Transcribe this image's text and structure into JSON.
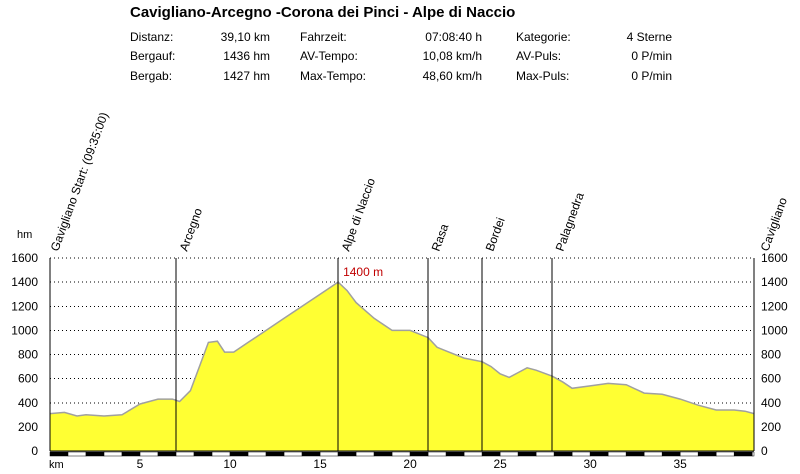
{
  "header": {
    "title": "Cavigliano-Arcegno -Corona dei Pinci - Alpe di Naccio",
    "stats": [
      {
        "label": "Distanz:",
        "value": "39,10 km"
      },
      {
        "label": "Bergauf:",
        "value": "1436 hm"
      },
      {
        "label": "Bergab:",
        "value": "1427 hm"
      },
      {
        "label": "Fahrzeit:",
        "value": "07:08:40 h"
      },
      {
        "label": "AV-Tempo:",
        "value": "10,08 km/h"
      },
      {
        "label": "Max-Tempo:",
        "value": "48,60 km/h"
      },
      {
        "label": "Kategorie:",
        "value": "4 Sterne"
      },
      {
        "label": "AV-Puls:",
        "value": "0 P/min"
      },
      {
        "label": "Max-Puls:",
        "value": "0 P/min"
      }
    ]
  },
  "chart_data": {
    "type": "area",
    "ylabel": "hm",
    "xlabel": "km",
    "xlim": [
      0,
      39.1
    ],
    "ylim": [
      0,
      1600
    ],
    "yticks": [
      0,
      200,
      400,
      600,
      800,
      1000,
      1200,
      1400,
      1600
    ],
    "xticks": [
      5,
      10,
      15,
      20,
      25,
      30,
      35
    ],
    "grid": true,
    "fill_color": "#ffff33",
    "line_color": "#a0a0a0",
    "max_annotation": {
      "x": 16.0,
      "y": 1400,
      "label": "1400 m",
      "color": "#c00000"
    },
    "waypoints": [
      {
        "name": "Gavigliano Start: (09:35:00)",
        "x": 0.0
      },
      {
        "name": "Arcegno",
        "x": 7.0
      },
      {
        "name": "Alpe di Naccio",
        "x": 16.0
      },
      {
        "name": "Rasa",
        "x": 21.0
      },
      {
        "name": "Bordei",
        "x": 24.0
      },
      {
        "name": "Palagnedra",
        "x": 27.9
      },
      {
        "name": "Cavigliano",
        "x": 39.1
      }
    ],
    "series": [
      {
        "x": [
          0,
          0.8,
          1.5,
          2.0,
          3.0,
          4.0,
          5.0,
          6.0,
          6.8,
          7.2,
          7.8,
          8.3,
          8.8,
          9.3,
          9.7,
          10.2,
          11.0,
          12.0,
          13.0,
          14.0,
          15.0,
          15.6,
          16.0,
          16.5,
          17.0,
          18.0,
          19.0,
          20.0,
          21.0,
          21.5,
          22.0,
          23.0,
          24.0,
          24.5,
          25.0,
          25.5,
          26.0,
          26.5,
          27.0,
          27.9,
          28.5,
          29.0,
          30.0,
          31.0,
          32.0,
          33.0,
          34.0,
          35.0,
          36.0,
          37.0,
          38.0,
          38.6,
          39.1
        ],
        "y": [
          310,
          320,
          290,
          300,
          290,
          300,
          390,
          430,
          430,
          410,
          500,
          700,
          900,
          910,
          820,
          820,
          900,
          1000,
          1100,
          1200,
          1300,
          1360,
          1400,
          1330,
          1230,
          1100,
          1000,
          1000,
          940,
          860,
          830,
          770,
          740,
          700,
          640,
          610,
          650,
          690,
          670,
          620,
          570,
          520,
          540,
          560,
          550,
          480,
          470,
          430,
          380,
          340,
          340,
          330,
          310
        ]
      }
    ]
  }
}
